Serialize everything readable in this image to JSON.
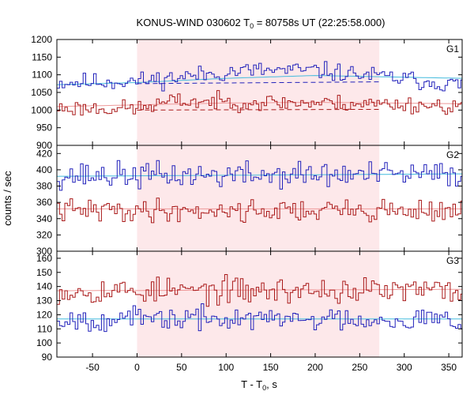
{
  "chart_data": {
    "type": "line",
    "title": "KONUS-WIND 030602 T",
    "title_sub": "0",
    "title_rest": " = 80758s UT (22:25:58.000)",
    "xlabel": "T - T",
    "xlabel_sub": "0",
    "xlabel_rest": ", s",
    "ylabel": "counts / sec",
    "xlim": [
      -90,
      365
    ],
    "x_ticks": [
      -50,
      0,
      50,
      100,
      150,
      200,
      250,
      300,
      350
    ],
    "x_tick_labels": [
      "-50",
      "0",
      "50",
      "100",
      "150",
      "200",
      "250",
      "300",
      "350"
    ],
    "bin_width": 2.944,
    "shaded_interval": [
      0,
      272
    ],
    "shade_color": "#fde8ea",
    "colors": {
      "blue": "#2222bb",
      "red": "#aa1a1a",
      "blue_bg": "#44bbdd",
      "red_bg": "#ee9999"
    },
    "panels": [
      {
        "label": "G1",
        "ylim": [
          900,
          1200
        ],
        "y_ticks": [
          900,
          950,
          1000,
          1050,
          1100,
          1150,
          1200
        ],
        "y_tick_labels": [
          "900",
          "950",
          "1000",
          "1050",
          "1100",
          "1150",
          "1200"
        ],
        "series": [
          {
            "color": "blue",
            "level": 1080,
            "trend": [
              [
                -90,
                1078
              ],
              [
                0,
                1082
              ],
              [
                120,
                1112
              ],
              [
                200,
                1112
              ],
              [
                272,
                1095
              ],
              [
                365,
                1070
              ]
            ],
            "amp": 22,
            "seed": 11,
            "background": [
              [
                -90,
                1072
              ],
              [
                0,
                1078
              ],
              [
                100,
                1090
              ],
              [
                200,
                1098
              ],
              [
                365,
                1090
              ]
            ],
            "bg_dashed": [
              [
                0,
                1075
              ],
              [
                272,
                1080
              ]
            ]
          },
          {
            "color": "red",
            "level": 1005,
            "trend": [
              [
                -90,
                1005
              ],
              [
                0,
                1005
              ],
              [
                40,
                1025
              ],
              [
                200,
                1020
              ],
              [
                272,
                1018
              ],
              [
                365,
                1010
              ]
            ],
            "amp": 20,
            "seed": 23,
            "background": [
              [
                -90,
                1010
              ],
              [
                100,
                1020
              ],
              [
                200,
                1022
              ],
              [
                365,
                1018
              ]
            ],
            "bg_dashed": [
              [
                0,
                1000
              ],
              [
                272,
                1002
              ]
            ]
          }
        ]
      },
      {
        "label": "G2",
        "ylim": [
          300,
          430
        ],
        "y_ticks": [
          300,
          320,
          340,
          360,
          380,
          400,
          420
        ],
        "y_tick_labels": [
          "300",
          "320",
          "340",
          "360",
          "380",
          "400",
          "420"
        ],
        "series": [
          {
            "color": "blue",
            "level": 395,
            "trend": [
              [
                -90,
                393
              ],
              [
                365,
                394
              ]
            ],
            "amp": 14,
            "seed": 37,
            "background": [
              [
                -90,
                392
              ],
              [
                365,
                395
              ]
            ]
          },
          {
            "color": "red",
            "level": 350,
            "trend": [
              [
                -90,
                350
              ],
              [
                365,
                350
              ]
            ],
            "amp": 12,
            "seed": 41,
            "background": [
              [
                -90,
                352
              ],
              [
                365,
                352
              ]
            ]
          }
        ]
      },
      {
        "label": "G3",
        "ylim": [
          90,
          165
        ],
        "y_ticks": [
          90,
          100,
          110,
          120,
          130,
          140,
          150,
          160
        ],
        "y_tick_labels": [
          "90",
          "100",
          "110",
          "120",
          "130",
          "140",
          "150",
          "160"
        ],
        "series": [
          {
            "color": "red",
            "level": 137,
            "trend": [
              [
                -90,
                137
              ],
              [
                365,
                137
              ]
            ],
            "amp": 8,
            "seed": 53,
            "background": [
              [
                -90,
                137
              ],
              [
                365,
                138
              ]
            ]
          },
          {
            "color": "blue",
            "level": 117,
            "trend": [
              [
                -90,
                117
              ],
              [
                365,
                117
              ]
            ],
            "amp": 7,
            "seed": 67,
            "background": [
              [
                -90,
                117
              ],
              [
                365,
                117
              ]
            ]
          }
        ]
      }
    ]
  }
}
